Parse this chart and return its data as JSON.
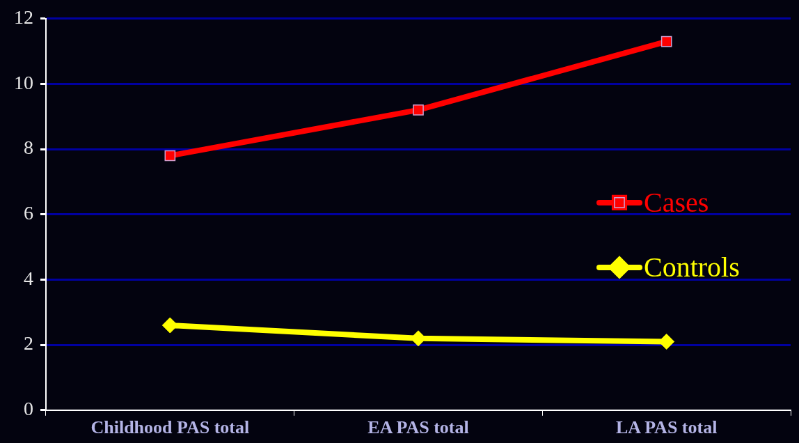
{
  "chart_data": {
    "type": "line",
    "categories": [
      "Childhood PAS total",
      "EA PAS total",
      "LA PAS total"
    ],
    "series": [
      {
        "name": "Cases",
        "color": "#ff0000",
        "values": [
          7.8,
          9.2,
          11.3
        ],
        "marker": "square"
      },
      {
        "name": "Controls",
        "color": "#ffff00",
        "values": [
          2.6,
          2.2,
          2.1
        ],
        "marker": "diamond"
      }
    ],
    "ylim": [
      0,
      12
    ],
    "yticks": [
      0,
      2,
      4,
      6,
      8,
      10,
      12
    ],
    "grid": "y",
    "legend": "right"
  }
}
